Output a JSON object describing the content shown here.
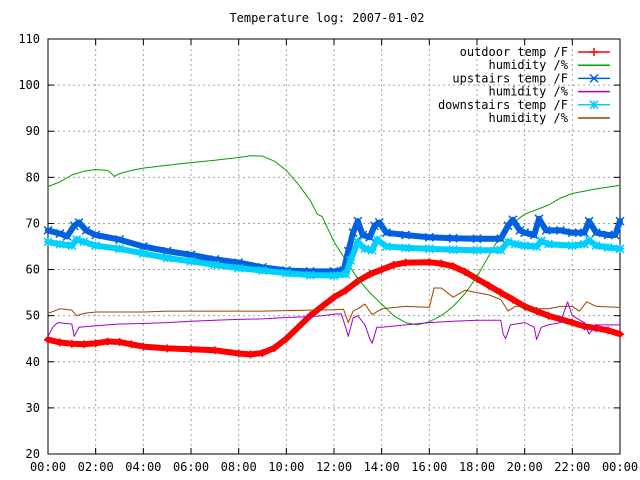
{
  "chart_data": {
    "type": "line",
    "title": "Temperature log: 2007-01-02",
    "xlabel": "",
    "ylabel": "",
    "xlim": [
      0,
      24
    ],
    "ylim": [
      20,
      110
    ],
    "yticks": [
      20,
      30,
      40,
      50,
      60,
      70,
      80,
      90,
      100,
      110
    ],
    "xticks": [
      {
        "x": 0,
        "label": "00:00"
      },
      {
        "x": 2,
        "label": "02:00"
      },
      {
        "x": 4,
        "label": "04:00"
      },
      {
        "x": 6,
        "label": "06:00"
      },
      {
        "x": 8,
        "label": "08:00"
      },
      {
        "x": 10,
        "label": "10:00"
      },
      {
        "x": 12,
        "label": "12:00"
      },
      {
        "x": 14,
        "label": "14:00"
      },
      {
        "x": 16,
        "label": "16:00"
      },
      {
        "x": 18,
        "label": "18:00"
      },
      {
        "x": 20,
        "label": "20:00"
      },
      {
        "x": 22,
        "label": "22:00"
      },
      {
        "x": 24,
        "label": "00:00"
      }
    ],
    "grid": true,
    "legend_position": "top-right",
    "series": [
      {
        "name": "outdoor temp /F",
        "color": "#ff0000",
        "marker": "plus",
        "width": 6,
        "points": [
          [
            0,
            44.8
          ],
          [
            0.5,
            44.2
          ],
          [
            1,
            43.9
          ],
          [
            1.5,
            43.8
          ],
          [
            2,
            44.0
          ],
          [
            2.5,
            44.4
          ],
          [
            3,
            44.3
          ],
          [
            3.5,
            43.8
          ],
          [
            4,
            43.3
          ],
          [
            5,
            42.9
          ],
          [
            6,
            42.7
          ],
          [
            7,
            42.5
          ],
          [
            8,
            41.8
          ],
          [
            8.5,
            41.6
          ],
          [
            9,
            41.9
          ],
          [
            9.5,
            43.0
          ],
          [
            10,
            45.0
          ],
          [
            10.5,
            47.5
          ],
          [
            11,
            50.0
          ],
          [
            11.5,
            52.0
          ],
          [
            12,
            54.0
          ],
          [
            12.5,
            55.5
          ],
          [
            13,
            57.5
          ],
          [
            13.5,
            59.0
          ],
          [
            14,
            60.0
          ],
          [
            14.5,
            61.0
          ],
          [
            15,
            61.5
          ],
          [
            16,
            61.6
          ],
          [
            16.5,
            61.3
          ],
          [
            17,
            60.7
          ],
          [
            17.5,
            59.5
          ],
          [
            18,
            58.0
          ],
          [
            18.5,
            56.5
          ],
          [
            19,
            55.0
          ],
          [
            19.5,
            53.5
          ],
          [
            20,
            52.0
          ],
          [
            20.5,
            51.0
          ],
          [
            21,
            50.0
          ],
          [
            22,
            48.5
          ],
          [
            22.5,
            47.7
          ],
          [
            23,
            47.3
          ],
          [
            23.5,
            46.8
          ],
          [
            24,
            46.0
          ]
        ]
      },
      {
        "name": "humidity /%",
        "color": "#00a000",
        "marker": "none",
        "width": 1,
        "points": [
          [
            0,
            78
          ],
          [
            0.5,
            79
          ],
          [
            1,
            80.5
          ],
          [
            1.5,
            81.3
          ],
          [
            2,
            81.7
          ],
          [
            2.5,
            81.5
          ],
          [
            2.8,
            80.2
          ],
          [
            3,
            80.8
          ],
          [
            3.5,
            81.5
          ],
          [
            4,
            82
          ],
          [
            5,
            82.6
          ],
          [
            6,
            83.2
          ],
          [
            7,
            83.7
          ],
          [
            8,
            84.3
          ],
          [
            8.5,
            84.7
          ],
          [
            9,
            84.6
          ],
          [
            9.5,
            83.5
          ],
          [
            10,
            81.5
          ],
          [
            10.5,
            78.5
          ],
          [
            11,
            75
          ],
          [
            11.3,
            72
          ],
          [
            11.5,
            71.5
          ],
          [
            12,
            66
          ],
          [
            12.5,
            62
          ],
          [
            13,
            58
          ],
          [
            13.5,
            55
          ],
          [
            14,
            52.5
          ],
          [
            14.5,
            50
          ],
          [
            15,
            48.5
          ],
          [
            15.5,
            48
          ],
          [
            16,
            48.7
          ],
          [
            16.5,
            50
          ],
          [
            17,
            52
          ],
          [
            17.5,
            54.8
          ],
          [
            18,
            58.5
          ],
          [
            18.5,
            63
          ],
          [
            19,
            67.5
          ],
          [
            19.5,
            70
          ],
          [
            20,
            72
          ],
          [
            20.5,
            73
          ],
          [
            21,
            74
          ],
          [
            21.5,
            75.5
          ],
          [
            22,
            76.5
          ],
          [
            23,
            77.5
          ],
          [
            24,
            78.3
          ]
        ]
      },
      {
        "name": "upstairs temp /F",
        "color": "#0060e0",
        "marker": "x",
        "width": 6,
        "points": [
          [
            0,
            68.5
          ],
          [
            0.5,
            67.8
          ],
          [
            0.8,
            67.2
          ],
          [
            1.1,
            69.5
          ],
          [
            1.3,
            70.2
          ],
          [
            1.6,
            68.5
          ],
          [
            2,
            67.5
          ],
          [
            3,
            66.5
          ],
          [
            4,
            65
          ],
          [
            5,
            64
          ],
          [
            6,
            63.2
          ],
          [
            7,
            62.2
          ],
          [
            8,
            61.5
          ],
          [
            9,
            60.5
          ],
          [
            10,
            59.8
          ],
          [
            11,
            59.6
          ],
          [
            12,
            59.6
          ],
          [
            12.4,
            59.8
          ],
          [
            12.6,
            64
          ],
          [
            12.8,
            68
          ],
          [
            13,
            70.5
          ],
          [
            13.2,
            67.5
          ],
          [
            13.5,
            67
          ],
          [
            13.7,
            69.5
          ],
          [
            13.9,
            70.2
          ],
          [
            14.2,
            68
          ],
          [
            15,
            67.5
          ],
          [
            16,
            67
          ],
          [
            17,
            66.8
          ],
          [
            18,
            66.7
          ],
          [
            19,
            66.7
          ],
          [
            19.3,
            69.5
          ],
          [
            19.5,
            70.8
          ],
          [
            19.8,
            68.5
          ],
          [
            20,
            68
          ],
          [
            20.4,
            67.5
          ],
          [
            20.6,
            71
          ],
          [
            20.9,
            68.5
          ],
          [
            21.5,
            68.5
          ],
          [
            22,
            68
          ],
          [
            22.5,
            68
          ],
          [
            22.7,
            70.5
          ],
          [
            23,
            68
          ],
          [
            23.5,
            67.5
          ],
          [
            23.8,
            67.5
          ],
          [
            24,
            70.5
          ]
        ]
      },
      {
        "name": "humidity /%",
        "color": "#a000d0",
        "marker": "none",
        "width": 1,
        "points": [
          [
            0,
            45.5
          ],
          [
            0.2,
            47.5
          ],
          [
            0.4,
            48.5
          ],
          [
            1,
            48.2
          ],
          [
            1.1,
            45.5
          ],
          [
            1.3,
            47.5
          ],
          [
            2,
            47.8
          ],
          [
            3,
            48.2
          ],
          [
            4,
            48.3
          ],
          [
            5,
            48.5
          ],
          [
            6,
            48.8
          ],
          [
            7,
            49
          ],
          [
            8,
            49.2
          ],
          [
            9,
            49.3
          ],
          [
            10,
            49.6
          ],
          [
            11,
            49.8
          ],
          [
            11.5,
            50
          ],
          [
            12,
            50.3
          ],
          [
            12.3,
            50.4
          ],
          [
            12.5,
            47.3
          ],
          [
            12.6,
            45.5
          ],
          [
            12.8,
            49.5
          ],
          [
            13,
            50
          ],
          [
            13.3,
            48
          ],
          [
            13.5,
            45
          ],
          [
            13.6,
            44
          ],
          [
            13.8,
            47.5
          ],
          [
            14,
            47.5
          ],
          [
            15,
            48
          ],
          [
            16,
            48.5
          ],
          [
            17,
            48.8
          ],
          [
            18,
            49
          ],
          [
            19,
            49
          ],
          [
            19.1,
            46
          ],
          [
            19.2,
            45
          ],
          [
            19.4,
            48
          ],
          [
            20,
            48.5
          ],
          [
            20.4,
            47.5
          ],
          [
            20.5,
            44.8
          ],
          [
            20.7,
            47.5
          ],
          [
            21,
            48
          ],
          [
            21.5,
            48.5
          ],
          [
            21.8,
            53
          ],
          [
            22,
            50
          ],
          [
            22.5,
            48.5
          ],
          [
            22.7,
            46
          ],
          [
            23,
            48
          ],
          [
            24,
            48
          ]
        ]
      },
      {
        "name": "downstairs temp /F",
        "color": "#00d0ff",
        "marker": "star",
        "width": 6,
        "points": [
          [
            0,
            66
          ],
          [
            0.5,
            65.5
          ],
          [
            1,
            65.2
          ],
          [
            1.2,
            66.5
          ],
          [
            1.5,
            66
          ],
          [
            2,
            65.2
          ],
          [
            3,
            64.5
          ],
          [
            4,
            63.5
          ],
          [
            5,
            62.5
          ],
          [
            6,
            61.8
          ],
          [
            7,
            61
          ],
          [
            8,
            60.3
          ],
          [
            9,
            59.8
          ],
          [
            10,
            59.2
          ],
          [
            11,
            58.8
          ],
          [
            12,
            58.7
          ],
          [
            12.5,
            59
          ],
          [
            12.7,
            62
          ],
          [
            13,
            66
          ],
          [
            13.3,
            64.5
          ],
          [
            13.6,
            64.2
          ],
          [
            13.8,
            66.5
          ],
          [
            14.2,
            65
          ],
          [
            15,
            64.7
          ],
          [
            16,
            64.5
          ],
          [
            17,
            64.3
          ],
          [
            18,
            64.2
          ],
          [
            19,
            64.2
          ],
          [
            19.3,
            66
          ],
          [
            19.6,
            65.5
          ],
          [
            20,
            65.2
          ],
          [
            20.5,
            65
          ],
          [
            20.7,
            66.2
          ],
          [
            21,
            65.5
          ],
          [
            22,
            65.2
          ],
          [
            22.5,
            65.5
          ],
          [
            22.7,
            66.3
          ],
          [
            23,
            65.2
          ],
          [
            23.5,
            64.8
          ],
          [
            24,
            64.5
          ]
        ]
      },
      {
        "name": "humidity /%",
        "color": "#a04000",
        "marker": "none",
        "width": 1,
        "points": [
          [
            0,
            50.5
          ],
          [
            0.5,
            51.5
          ],
          [
            1,
            51.2
          ],
          [
            1.2,
            50
          ],
          [
            1.5,
            50.5
          ],
          [
            2,
            50.8
          ],
          [
            3,
            50.8
          ],
          [
            4,
            50.8
          ],
          [
            5,
            51
          ],
          [
            6,
            51
          ],
          [
            7,
            51
          ],
          [
            8,
            51
          ],
          [
            9,
            51
          ],
          [
            10,
            51.1
          ],
          [
            11,
            51.2
          ],
          [
            12,
            51.3
          ],
          [
            12.4,
            51.4
          ],
          [
            12.6,
            48.5
          ],
          [
            12.8,
            51
          ],
          [
            13,
            51.5
          ],
          [
            13.3,
            52.5
          ],
          [
            13.6,
            50.2
          ],
          [
            14,
            51.5
          ],
          [
            15,
            52
          ],
          [
            16,
            51.8
          ],
          [
            16.2,
            56
          ],
          [
            16.5,
            56
          ],
          [
            17,
            54
          ],
          [
            17.5,
            55.5
          ],
          [
            18,
            55
          ],
          [
            18.5,
            54.5
          ],
          [
            19,
            53.5
          ],
          [
            19.3,
            51
          ],
          [
            19.6,
            52
          ],
          [
            20,
            52
          ],
          [
            20.5,
            51.5
          ],
          [
            21,
            51.5
          ],
          [
            21.5,
            52
          ],
          [
            22,
            52
          ],
          [
            22.3,
            51
          ],
          [
            22.6,
            53
          ],
          [
            23,
            52
          ],
          [
            24,
            51.8
          ]
        ]
      }
    ]
  }
}
